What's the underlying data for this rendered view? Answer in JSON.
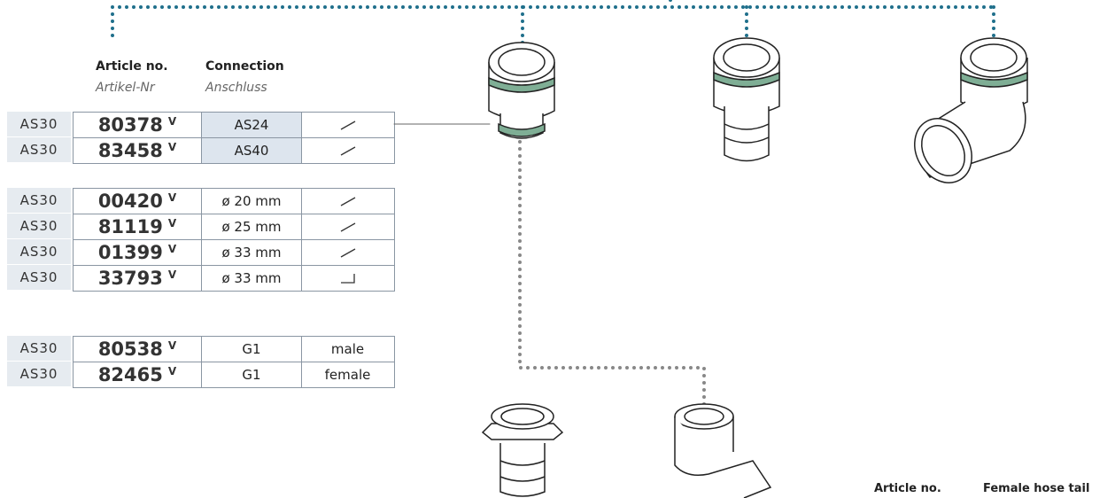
{
  "header": {
    "article_no": "Article no.",
    "article_no_de": "Artikel-Nr",
    "connection": "Connection",
    "connection_de": "Anschluss"
  },
  "table": {
    "groups": [
      {
        "rows": [
          {
            "prefix": "AS30",
            "article": "80378",
            "mark": "V",
            "connection": "AS24"
          },
          {
            "prefix": "AS30",
            "article": "83458",
            "mark": "V",
            "connection": "AS40"
          }
        ]
      },
      {
        "rows": [
          {
            "prefix": "AS30",
            "article": "00420",
            "mark": "V",
            "connection": "ø 20 mm"
          },
          {
            "prefix": "AS30",
            "article": "81119",
            "mark": "V",
            "connection": "ø 25 mm"
          },
          {
            "prefix": "AS30",
            "article": "01399",
            "mark": "V",
            "connection": "ø 33 mm"
          },
          {
            "prefix": "AS30",
            "article": "33793",
            "mark": "V",
            "connection": "ø 33 mm"
          }
        ]
      },
      {
        "rows": [
          {
            "prefix": "AS30",
            "article": "80538",
            "mark": "V",
            "connection": "G1",
            "type": "male"
          },
          {
            "prefix": "AS30",
            "article": "82465",
            "mark": "V",
            "connection": "G1",
            "type": "female"
          }
        ]
      }
    ]
  },
  "footer": {
    "article_no": "Article no.",
    "hose_tail": "Female hose tail"
  }
}
